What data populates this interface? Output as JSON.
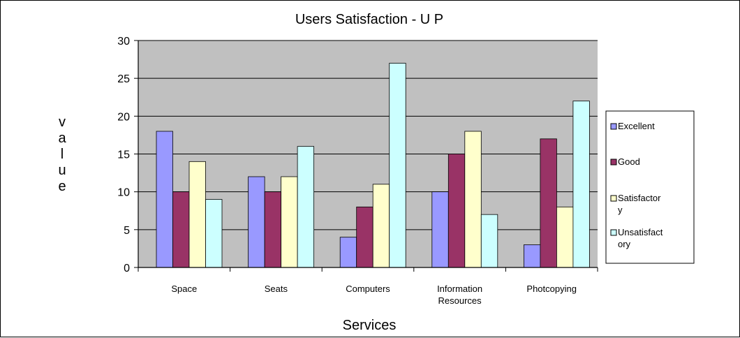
{
  "chart_data": {
    "type": "bar",
    "title": "Users Satisfaction - U P",
    "xlabel": "Services",
    "ylabel": "value",
    "categories": [
      "Space",
      "Seats",
      "Computers",
      "Information Resources",
      "Photcopying"
    ],
    "category_lines": [
      [
        "Space"
      ],
      [
        "Seats"
      ],
      [
        "Computers"
      ],
      [
        "Information",
        "Resources"
      ],
      [
        "Photcopying"
      ]
    ],
    "series": [
      {
        "name": "Excellent",
        "legend_lines": [
          "Excellent"
        ],
        "color": "#9999ff",
        "values": [
          18,
          12,
          4,
          10,
          3
        ]
      },
      {
        "name": "Good",
        "legend_lines": [
          "Good"
        ],
        "color": "#993366",
        "values": [
          10,
          10,
          8,
          15,
          17
        ]
      },
      {
        "name": "Satisfactory",
        "legend_lines": [
          "Satisfactor",
          "y"
        ],
        "color": "#ffffcc",
        "values": [
          14,
          12,
          11,
          18,
          8
        ]
      },
      {
        "name": "Unsatisfactory",
        "legend_lines": [
          "Unsatisfact",
          "ory"
        ],
        "color": "#ccffff",
        "values": [
          9,
          16,
          27,
          7,
          22
        ]
      }
    ],
    "ylim": [
      0,
      30
    ],
    "yticks": [
      0,
      5,
      10,
      15,
      20,
      25,
      30
    ],
    "grid": true,
    "plot_background": "#c0c0c0",
    "legend_position": "right"
  }
}
